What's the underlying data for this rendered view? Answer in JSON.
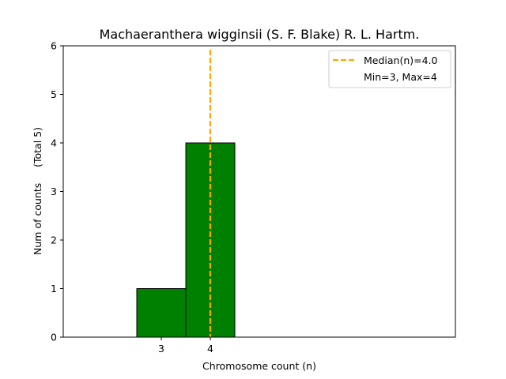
{
  "chart_data": {
    "type": "bar",
    "title": "Machaeranthera wigginsii (S. F. Blake) R. L. Hartm.",
    "xlabel": "Chromosome count (n)",
    "ylabel": "Num of counts     (Total 5)",
    "xlim": [
      1,
      9
    ],
    "ylim": [
      0,
      6
    ],
    "xticks": [
      3,
      4
    ],
    "yticks": [
      0,
      1,
      2,
      3,
      4,
      5,
      6
    ],
    "bars": [
      {
        "x": 3,
        "count": 1
      },
      {
        "x": 4,
        "count": 4
      }
    ],
    "bar_color": "#008000",
    "bar_edge_color": "#000000",
    "median": 4.0,
    "median_color": "#FFA500",
    "legend": {
      "position": "top-right",
      "entries": [
        "Median(n)=4.0",
        "Min=3, Max=4"
      ]
    },
    "grid": false
  }
}
